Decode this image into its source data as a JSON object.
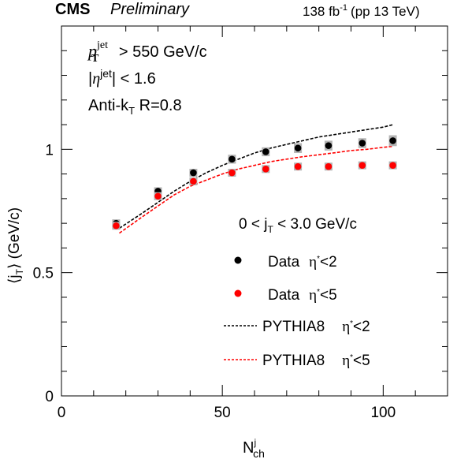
{
  "chart_data": {
    "type": "scatter",
    "header": {
      "experiment": "CMS",
      "status": "Preliminary",
      "lumi_value": "138 fb",
      "lumi_exp": "-1",
      "energy": "(pp 13 TeV)"
    },
    "annotations": {
      "pt_cut": {
        "sym": "p",
        "sup": "jet",
        "sub": "T",
        "rest": " > 550 GeV/c"
      },
      "eta_cut": {
        "pre": "|",
        "sym": "η",
        "sup": "jet",
        "rest": "| < 1.6"
      },
      "algo": {
        "pre": "Anti-k",
        "sub": "T",
        "rest": " R=0.8"
      },
      "jt_range": {
        "pre": "0 < j",
        "sub": "T",
        "rest": " < 3.0 GeV/c"
      }
    },
    "xlabel": {
      "main": "N",
      "sup": "j",
      "sub": "ch"
    },
    "ylabel": {
      "pre": "⟨j",
      "sub": "T",
      "post": "⟩ (GeV/c)"
    },
    "xlim": [
      0,
      120
    ],
    "ylim": [
      0,
      1.5
    ],
    "xticks": [
      0,
      50,
      100
    ],
    "yticks": [
      0,
      0.5,
      1
    ],
    "grid": false,
    "legend_position": "lower-right",
    "colors": {
      "black": "#000000",
      "red": "#ff0000",
      "band": "#b4b4b4"
    },
    "series": [
      {
        "name": "Data",
        "cond": "<2",
        "kind": "marker",
        "color": "#000000",
        "x": [
          17,
          30,
          41,
          53,
          63.5,
          73.5,
          83,
          93.5,
          103
        ],
        "y": [
          0.7,
          0.83,
          0.905,
          0.96,
          0.99,
          1.005,
          1.015,
          1.025,
          1.035
        ],
        "err": [
          0.015,
          0.015,
          0.015,
          0.018,
          0.018,
          0.02,
          0.02,
          0.02,
          0.022
        ]
      },
      {
        "name": "Data",
        "cond": "<5",
        "kind": "marker",
        "color": "#ff0000",
        "x": [
          17,
          30,
          41,
          53,
          63.5,
          73.5,
          83,
          93.5,
          103
        ],
        "y": [
          0.69,
          0.81,
          0.87,
          0.905,
          0.92,
          0.93,
          0.93,
          0.935,
          0.935
        ],
        "err": [
          0.012,
          0.012,
          0.012,
          0.012,
          0.012,
          0.012,
          0.012,
          0.012,
          0.012
        ]
      },
      {
        "name": "PYTHIA8",
        "cond": "<2",
        "kind": "line",
        "color": "#000000",
        "x": [
          18,
          25,
          30,
          35,
          40,
          45,
          50,
          55,
          60,
          65,
          70,
          75,
          80,
          85,
          90,
          95,
          100,
          103
        ],
        "y": [
          0.68,
          0.74,
          0.785,
          0.83,
          0.87,
          0.905,
          0.935,
          0.96,
          0.985,
          1.005,
          1.02,
          1.035,
          1.05,
          1.06,
          1.07,
          1.08,
          1.09,
          1.1
        ]
      },
      {
        "name": "PYTHIA8",
        "cond": "<5",
        "kind": "line",
        "color": "#ff0000",
        "x": [
          18,
          25,
          30,
          35,
          40,
          45,
          50,
          55,
          60,
          65,
          70,
          75,
          80,
          85,
          90,
          95,
          100,
          103
        ],
        "y": [
          0.66,
          0.725,
          0.77,
          0.815,
          0.85,
          0.875,
          0.9,
          0.92,
          0.935,
          0.95,
          0.96,
          0.97,
          0.978,
          0.986,
          0.995,
          1.0,
          1.008,
          1.012
        ]
      }
    ]
  }
}
